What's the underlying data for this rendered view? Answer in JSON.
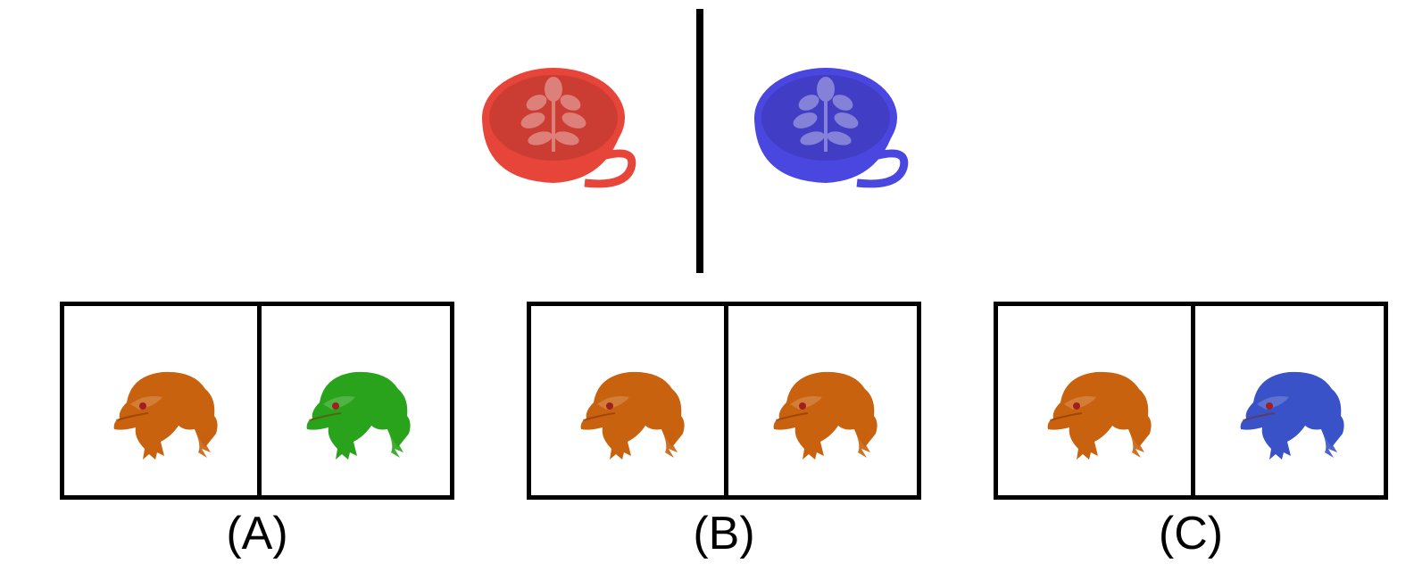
{
  "prompt": {
    "left_cup": {
      "icon": "latte-cup-icon",
      "color": "#e8453a"
    },
    "right_cup": {
      "icon": "latte-cup-icon",
      "color": "#4a46e0"
    }
  },
  "options": [
    {
      "label": "(A)",
      "left_frog": {
        "icon": "frog-icon",
        "color": "#c8620e"
      },
      "right_frog": {
        "icon": "frog-icon",
        "color": "#2aa31c"
      }
    },
    {
      "label": "(B)",
      "left_frog": {
        "icon": "frog-icon",
        "color": "#c8620e"
      },
      "right_frog": {
        "icon": "frog-icon",
        "color": "#c8620e"
      }
    },
    {
      "label": "(C)",
      "left_frog": {
        "icon": "frog-icon",
        "color": "#c8620e"
      },
      "right_frog": {
        "icon": "frog-icon",
        "color": "#3a52c8"
      }
    }
  ]
}
